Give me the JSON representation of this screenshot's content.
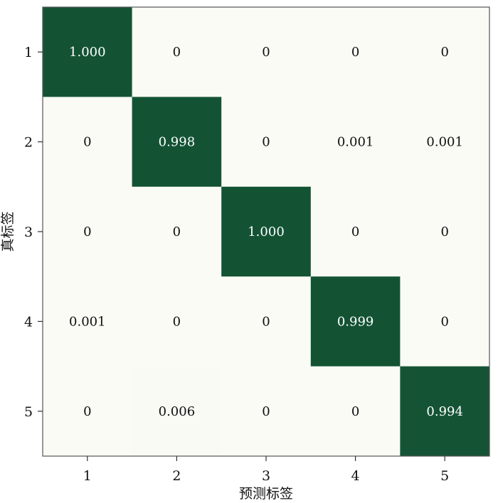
{
  "chart_data": {
    "type": "heatmap",
    "title": "",
    "xlabel": "预测标签",
    "ylabel": "真标签",
    "x_categories": [
      "1",
      "2",
      "3",
      "4",
      "5"
    ],
    "y_categories": [
      "1",
      "2",
      "3",
      "4",
      "5"
    ],
    "values": [
      [
        1.0,
        0,
        0,
        0,
        0
      ],
      [
        0,
        0.998,
        0,
        0.001,
        0.001
      ],
      [
        0,
        0,
        1.0,
        0,
        0
      ],
      [
        0.001,
        0,
        0,
        0.999,
        0
      ],
      [
        0,
        0.006,
        0,
        0,
        0.994
      ]
    ],
    "labels": [
      [
        "1.000",
        "0",
        "0",
        "0",
        "0"
      ],
      [
        "0",
        "0.998",
        "0",
        "0.001",
        "0.001"
      ],
      [
        "0",
        "0",
        "1.000",
        "0",
        "0"
      ],
      [
        "0.001",
        "0",
        "0",
        "0.999",
        "0"
      ],
      [
        "0",
        "0.006",
        "0",
        "0",
        "0.994"
      ]
    ],
    "colors": {
      "low": "#fafbf5",
      "high": "#135334",
      "text_on_high": "#ffffff",
      "text_on_low": "#111111"
    },
    "legend": "none",
    "grid": false
  }
}
